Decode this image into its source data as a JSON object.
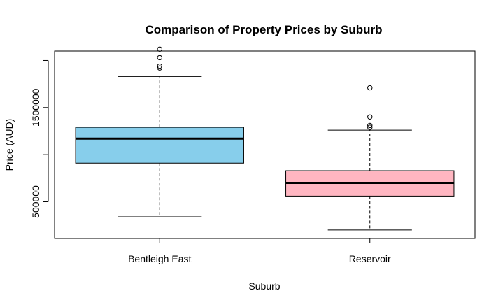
{
  "chart_data": {
    "type": "box",
    "title": "Comparison of Property Prices by Suburb",
    "xlabel": "Suburb",
    "ylabel": "Price (AUD)",
    "ylim": [
      110000,
      2100000
    ],
    "y_ticks": [
      500000,
      1000000,
      1500000,
      2000000
    ],
    "y_tick_labels": [
      "500000",
      "",
      "1500000",
      ""
    ],
    "grid": false,
    "legend": "none",
    "categories": [
      "Bentleigh East",
      "Reservoir"
    ],
    "boxes": [
      {
        "category": "Bentleigh East",
        "color": "#87CEEB",
        "whisker_low": 340000,
        "q1": 910000,
        "median": 1170000,
        "q3": 1290000,
        "whisker_high": 1830000,
        "outliers": [
          1920000,
          1940000,
          2030000,
          2120000
        ]
      },
      {
        "category": "Reservoir",
        "color": "#FFB6C1",
        "whisker_low": 200000,
        "q1": 560000,
        "median": 700000,
        "q3": 830000,
        "whisker_high": 1260000,
        "outliers": [
          1290000,
          1310000,
          1400000,
          1710000
        ]
      }
    ]
  }
}
